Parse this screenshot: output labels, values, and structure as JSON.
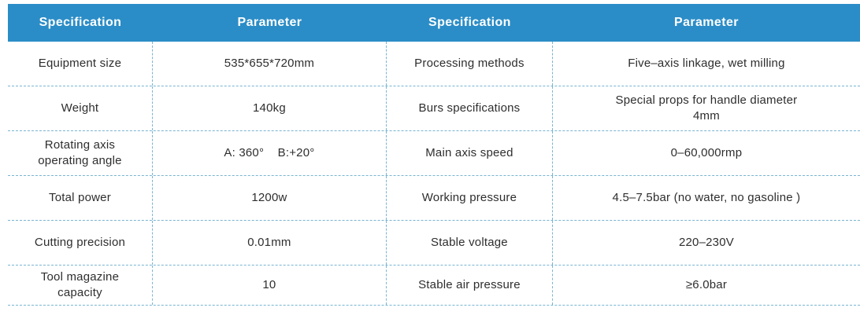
{
  "table": {
    "headers": [
      "Specification",
      "Parameter",
      "Specification",
      "Parameter"
    ],
    "rows": [
      [
        "Equipment size",
        "535*655*720mm",
        "Processing methods",
        "Five–axis linkage, wet milling"
      ],
      [
        "Weight",
        "140kg",
        "Burs specifications",
        "Special props for handle diameter\n4mm"
      ],
      [
        "Rotating axis\noperating angle",
        "A: 360°    B:+20°",
        "Main axis speed",
        "0–60,000rmp"
      ],
      [
        "Total power",
        "1200w",
        "Working pressure",
        "4.5–7.5bar (no water, no gasoline )"
      ],
      [
        "Cutting precision",
        "0.01mm",
        "Stable voltage",
        "220–230V"
      ],
      [
        "Tool magazine\ncapacity",
        "10",
        "Stable air pressure",
        "≥6.0bar"
      ]
    ]
  },
  "colors": {
    "header_background": "#2b8dc7",
    "header_text": "#ffffff",
    "dashed_border": "#79b5d2",
    "body_text": "#2e2e2e"
  }
}
